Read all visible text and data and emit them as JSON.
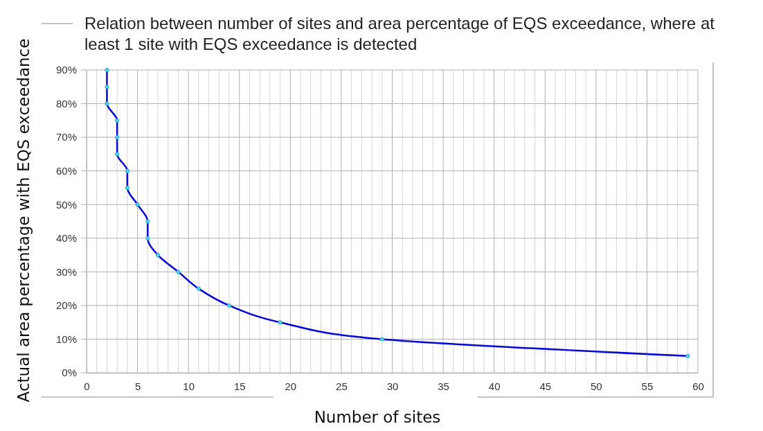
{
  "chart_data": {
    "type": "line",
    "title": "Relation between number of sites and area percentage of EQS exceedance, where at least 1 site with EQS exceedance is detected",
    "xlabel": "Number of sites",
    "ylabel": "Actual area percentage with EQS exceedance",
    "x": [
      2,
      2,
      2,
      3,
      3,
      3,
      4,
      4,
      5,
      6,
      6,
      7,
      9,
      11,
      14,
      19,
      29,
      59
    ],
    "series": [
      {
        "color": "#0000ff",
        "values": [
          90,
          85,
          80,
          75,
          70,
          65,
          60,
          55,
          50,
          45,
          40,
          35,
          30,
          25,
          20,
          15,
          10,
          5
        ]
      }
    ],
    "xlim": [
      0,
      60
    ],
    "xticks": [
      0,
      {
        "value": 1,
        "label": null
      },
      {
        "value": 2,
        "label": null
      },
      {
        "value": 3,
        "label": null
      },
      {
        "value": 4,
        "label": null
      },
      5,
      {
        "value": 6,
        "label": null
      },
      {
        "value": 7,
        "label": null
      },
      {
        "value": 8,
        "label": null
      },
      {
        "value": 9,
        "label": null
      },
      10,
      {
        "value": 11,
        "label": null
      },
      {
        "value": 12,
        "label": null
      },
      {
        "value": 13,
        "label": null
      },
      {
        "value": 14,
        "label": null
      },
      15,
      {
        "value": 16,
        "label": null
      },
      {
        "value": 17,
        "label": null
      },
      {
        "value": 18,
        "label": null
      },
      {
        "value": 19,
        "label": null
      },
      20,
      {
        "value": 21,
        "label": null
      },
      {
        "value": 22,
        "label": null
      },
      {
        "value": 23,
        "label": null
      },
      {
        "value": 24,
        "label": null
      },
      25,
      {
        "value": 26,
        "label": null
      },
      {
        "value": 27,
        "label": null
      },
      {
        "value": 28,
        "label": null
      },
      {
        "value": 29,
        "label": null
      },
      30,
      {
        "value": 31,
        "label": null
      },
      {
        "value": 32,
        "label": null
      },
      {
        "value": 33,
        "label": null
      },
      {
        "value": 34,
        "label": null
      },
      35,
      {
        "value": 36,
        "label": null
      },
      {
        "value": 37,
        "label": null
      },
      {
        "value": 38,
        "label": null
      },
      {
        "value": 39,
        "label": null
      },
      40,
      {
        "value": 41,
        "label": null
      },
      {
        "value": 42,
        "label": null
      },
      {
        "value": 43,
        "label": null
      },
      {
        "value": 44,
        "label": null
      },
      45,
      {
        "value": 46,
        "label": null
      },
      {
        "value": 47,
        "label": null
      },
      {
        "value": 48,
        "label": null
      },
      {
        "value": 49,
        "label": null
      },
      50,
      {
        "value": 51,
        "label": null
      },
      {
        "value": 52,
        "label": null
      },
      {
        "value": 53,
        "label": null
      },
      {
        "value": 54,
        "label": null
      },
      55,
      {
        "value": 56,
        "label": null
      },
      {
        "value": 57,
        "label": null
      },
      {
        "value": 58,
        "label": null
      },
      {
        "value": 59,
        "label": null
      },
      60
    ],
    "ylim": [
      0,
      90
    ],
    "yticks": [
      {
        "value": 0,
        "label": "0%"
      },
      {
        "value": 10,
        "label": "10%"
      },
      {
        "value": 20,
        "label": "20%"
      },
      {
        "value": 30,
        "label": "30%"
      },
      {
        "value": 40,
        "label": "40%"
      },
      {
        "value": 50,
        "label": "50%"
      },
      {
        "value": 60,
        "label": "60%"
      },
      {
        "value": 70,
        "label": "70%"
      },
      {
        "value": 80,
        "label": "80%"
      },
      {
        "value": 90,
        "label": "90%"
      }
    ],
    "grid": true,
    "marker": "circle",
    "line_style": "solid"
  }
}
